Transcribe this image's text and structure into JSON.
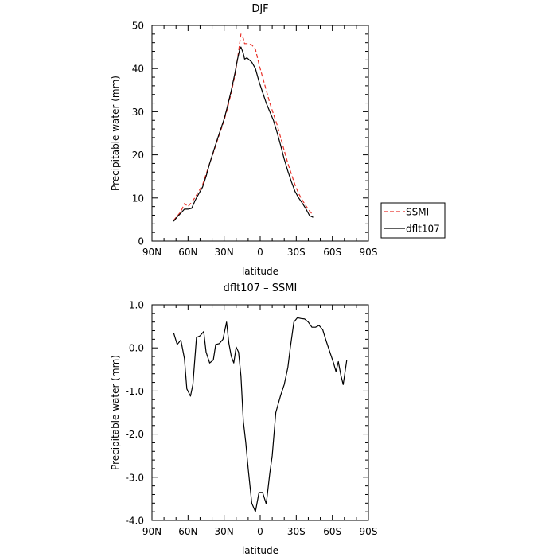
{
  "chart_data": [
    {
      "type": "line",
      "title": "DJF",
      "xlabel": "latitude",
      "ylabel": "Precipitable water (mm)",
      "xlim": [
        90,
        -90
      ],
      "ylim": [
        0,
        50
      ],
      "x_ticks": [
        90,
        60,
        30,
        0,
        -30,
        -60,
        -90
      ],
      "x_tick_labels": [
        "90N",
        "60N",
        "30N",
        "0",
        "30S",
        "60S",
        "90S"
      ],
      "y_ticks": [
        0,
        10,
        20,
        30,
        40,
        50
      ],
      "y_tick_labels": [
        "0",
        "10",
        "20",
        "30",
        "40",
        "50"
      ],
      "legend_position": "outside-right",
      "series": [
        {
          "name": "SSMI",
          "color": "#e8322a",
          "style": "dashed",
          "points": [
            [
              72,
              4.8
            ],
            [
              69,
              5.8
            ],
            [
              66,
              6.8
            ],
            [
              63,
              8.7
            ],
            [
              60,
              8.0
            ],
            [
              57,
              9.0
            ],
            [
              54,
              10.2
            ],
            [
              51,
              11.6
            ],
            [
              48,
              13.0
            ],
            [
              45,
              15.5
            ],
            [
              42,
              18.0
            ],
            [
              39,
              20.5
            ],
            [
              36,
              23.0
            ],
            [
              33,
              25.5
            ],
            [
              30,
              28.0
            ],
            [
              27,
              31.0
            ],
            [
              24,
              34.5
            ],
            [
              21,
              38.5
            ],
            [
              19,
              42.0
            ],
            [
              17,
              46.0
            ],
            [
              16,
              48.0
            ],
            [
              14,
              47.0
            ],
            [
              13,
              45.8
            ],
            [
              10,
              45.8
            ],
            [
              7,
              45.5
            ],
            [
              4,
              44.5
            ],
            [
              1,
              41.0
            ],
            [
              -2,
              38.0
            ],
            [
              -5,
              35.0
            ],
            [
              -8,
              32.0
            ],
            [
              -11,
              29.5
            ],
            [
              -14,
              27.0
            ],
            [
              -17,
              24.0
            ],
            [
              -20,
              21.0
            ],
            [
              -23,
              18.0
            ],
            [
              -26,
              15.5
            ],
            [
              -29,
              13.0
            ],
            [
              -32,
              11.0
            ],
            [
              -35,
              9.5
            ],
            [
              -38,
              8.2
            ],
            [
              -41,
              7.0
            ],
            [
              -44,
              6.0
            ]
          ]
        },
        {
          "name": "dflt107",
          "color": "#000000",
          "style": "solid",
          "points": [
            [
              72,
              4.6
            ],
            [
              69,
              5.6
            ],
            [
              66,
              6.5
            ],
            [
              63,
              7.4
            ],
            [
              60,
              7.4
            ],
            [
              57,
              7.6
            ],
            [
              54,
              9.5
            ],
            [
              51,
              11.0
            ],
            [
              48,
              12.5
            ],
            [
              45,
              15.0
            ],
            [
              42,
              18.0
            ],
            [
              39,
              20.7
            ],
            [
              36,
              23.3
            ],
            [
              33,
              25.8
            ],
            [
              30,
              28.3
            ],
            [
              27,
              31.5
            ],
            [
              24,
              35.0
            ],
            [
              21,
              39.0
            ],
            [
              19,
              42.0
            ],
            [
              17,
              44.5
            ],
            [
              16,
              45.0
            ],
            [
              14,
              43.5
            ],
            [
              13,
              42.2
            ],
            [
              11,
              42.5
            ],
            [
              9,
              42.0
            ],
            [
              7,
              41.5
            ],
            [
              4,
              40.0
            ],
            [
              1,
              37.0
            ],
            [
              -2,
              34.5
            ],
            [
              -5,
              32.0
            ],
            [
              -8,
              30.0
            ],
            [
              -11,
              28.0
            ],
            [
              -14,
              25.2
            ],
            [
              -17,
              22.2
            ],
            [
              -20,
              19.0
            ],
            [
              -23,
              16.2
            ],
            [
              -26,
              13.7
            ],
            [
              -29,
              11.5
            ],
            [
              -32,
              10.0
            ],
            [
              -35,
              8.8
            ],
            [
              -38,
              7.5
            ],
            [
              -41,
              5.9
            ],
            [
              -44,
              5.5
            ]
          ]
        }
      ]
    },
    {
      "type": "line",
      "title": "dflt107 – SSMI",
      "xlabel": "latitude",
      "ylabel": "Precipitable water (mm)",
      "xlim": [
        90,
        -90
      ],
      "ylim": [
        -4.0,
        1.0
      ],
      "x_ticks": [
        90,
        60,
        30,
        0,
        -30,
        -60,
        -90
      ],
      "x_tick_labels": [
        "90N",
        "60N",
        "30N",
        "0",
        "30S",
        "60S",
        "90S"
      ],
      "y_ticks": [
        1.0,
        0.0,
        -1.0,
        -2.0,
        -3.0,
        -4.0
      ],
      "y_tick_labels": [
        "1.0",
        "0.0",
        "-1.0",
        "-2.0",
        "-3.0",
        "-4.0"
      ],
      "series": [
        {
          "color": "#000000",
          "style": "solid",
          "points": [
            [
              72,
              0.35
            ],
            [
              69,
              0.08
            ],
            [
              66,
              0.18
            ],
            [
              63,
              -0.25
            ],
            [
              61,
              -0.95
            ],
            [
              58,
              -1.12
            ],
            [
              56,
              -0.85
            ],
            [
              53,
              0.24
            ],
            [
              50,
              0.28
            ],
            [
              47,
              0.38
            ],
            [
              45,
              -0.1
            ],
            [
              42,
              -0.35
            ],
            [
              39,
              -0.28
            ],
            [
              37,
              0.08
            ],
            [
              34,
              0.1
            ],
            [
              31,
              0.2
            ],
            [
              28,
              0.6
            ],
            [
              26,
              0.1
            ],
            [
              24,
              -0.2
            ],
            [
              22,
              -0.35
            ],
            [
              20,
              0.02
            ],
            [
              18,
              -0.1
            ],
            [
              16,
              -0.65
            ],
            [
              14,
              -1.7
            ],
            [
              12,
              -2.2
            ],
            [
              10,
              -2.8
            ],
            [
              7,
              -3.6
            ],
            [
              4,
              -3.8
            ],
            [
              1,
              -3.35
            ],
            [
              -2,
              -3.35
            ],
            [
              -5,
              -3.62
            ],
            [
              -8,
              -2.9
            ],
            [
              -10,
              -2.5
            ],
            [
              -13,
              -1.5
            ],
            [
              -17,
              -1.1
            ],
            [
              -20,
              -0.85
            ],
            [
              -23,
              -0.45
            ],
            [
              -25,
              0.0
            ],
            [
              -28,
              0.6
            ],
            [
              -31,
              0.7
            ],
            [
              -34,
              0.68
            ],
            [
              -37,
              0.67
            ],
            [
              -40,
              0.6
            ],
            [
              -43,
              0.48
            ],
            [
              -46,
              0.48
            ],
            [
              -49,
              0.52
            ],
            [
              -52,
              0.42
            ],
            [
              -55,
              0.15
            ],
            [
              -58,
              -0.1
            ],
            [
              -61,
              -0.35
            ],
            [
              -63,
              -0.55
            ],
            [
              -65,
              -0.32
            ],
            [
              -67,
              -0.62
            ],
            [
              -69,
              -0.85
            ],
            [
              -72,
              -0.28
            ]
          ]
        }
      ]
    }
  ]
}
